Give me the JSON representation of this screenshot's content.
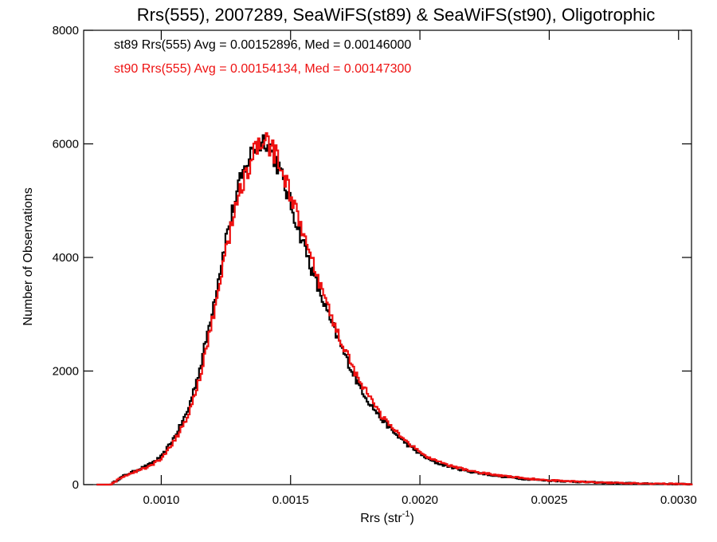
{
  "chart_data": {
    "type": "line",
    "title": "Rrs(555), 2007289, SeaWiFS(st89) & SeaWiFS(st90), Oligotrophic",
    "xlabel": {
      "base": "Rrs (str",
      "sup": "-1",
      "tail": ")"
    },
    "ylabel": "Number of Observations",
    "xlim": [
      0.0007,
      0.00305
    ],
    "ylim": [
      0,
      8000
    ],
    "xticks": [
      0.001,
      0.0015,
      0.002,
      0.0025,
      0.003
    ],
    "xtick_labels": [
      "0.0010",
      "0.0015",
      "0.0020",
      "0.0025",
      "0.0030"
    ],
    "yticks": [
      0,
      2000,
      4000,
      6000,
      8000
    ],
    "ytick_labels": [
      "0",
      "2000",
      "4000",
      "6000",
      "8000"
    ],
    "legend": [
      {
        "text": "st89 Rrs(555) Avg = 0.00152896, Med = 0.00146000",
        "color": "#000000"
      },
      {
        "text": "st90 Rrs(555) Avg = 0.00154134, Med = 0.00147300",
        "color": "#ee1111"
      }
    ],
    "legend_placement": "top-left",
    "series": [
      {
        "name": "st89",
        "color": "#000000",
        "x": [
          0.00075,
          0.0008,
          0.00085,
          0.0009,
          0.00095,
          0.001,
          0.00105,
          0.0011,
          0.00115,
          0.0012,
          0.00125,
          0.0013,
          0.00135,
          0.0014,
          0.00145,
          0.0015,
          0.00155,
          0.0016,
          0.00165,
          0.0017,
          0.00175,
          0.0018,
          0.00185,
          0.0019,
          0.00195,
          0.002,
          0.00205,
          0.0021,
          0.00215,
          0.0022,
          0.0023,
          0.0024,
          0.0025,
          0.0026,
          0.0027,
          0.0028,
          0.0029,
          0.003,
          0.00305
        ],
        "y": [
          0,
          0,
          150,
          250,
          350,
          500,
          850,
          1300,
          2100,
          3200,
          4400,
          5300,
          5900,
          6100,
          5600,
          4900,
          4200,
          3500,
          2900,
          2350,
          1850,
          1450,
          1150,
          900,
          700,
          530,
          400,
          330,
          270,
          220,
          150,
          100,
          70,
          50,
          35,
          25,
          15,
          10,
          5
        ]
      },
      {
        "name": "st90",
        "color": "#ee1111",
        "x": [
          0.00075,
          0.0008,
          0.00085,
          0.0009,
          0.00095,
          0.001,
          0.00105,
          0.0011,
          0.00115,
          0.0012,
          0.00125,
          0.0013,
          0.00135,
          0.0014,
          0.00145,
          0.0015,
          0.00155,
          0.0016,
          0.00165,
          0.0017,
          0.00175,
          0.0018,
          0.00185,
          0.0019,
          0.00195,
          0.002,
          0.00205,
          0.0021,
          0.00215,
          0.0022,
          0.0023,
          0.0024,
          0.0025,
          0.0026,
          0.0027,
          0.0028,
          0.0029,
          0.003,
          0.00305
        ],
        "y": [
          0,
          0,
          140,
          230,
          320,
          460,
          780,
          1200,
          1950,
          3000,
          4200,
          5150,
          5800,
          6050,
          5750,
          5050,
          4350,
          3650,
          3000,
          2450,
          1950,
          1550,
          1200,
          950,
          740,
          560,
          430,
          350,
          290,
          235,
          165,
          110,
          75,
          55,
          38,
          27,
          17,
          11,
          5
        ]
      }
    ]
  }
}
